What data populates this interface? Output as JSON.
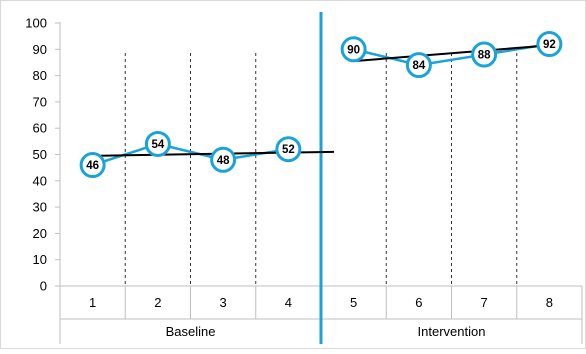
{
  "chart_data": {
    "type": "line",
    "title": "",
    "xlabel": "",
    "ylabel": "",
    "ylim": [
      0,
      100
    ],
    "y_ticks": [
      0,
      10,
      20,
      30,
      40,
      50,
      60,
      70,
      80,
      90,
      100
    ],
    "x_categories": [
      "1",
      "2",
      "3",
      "4",
      "5",
      "6",
      "7",
      "8"
    ],
    "phases": [
      {
        "name": "Baseline",
        "sessions": [
          1,
          2,
          3,
          4
        ]
      },
      {
        "name": "Intervention",
        "sessions": [
          5,
          6,
          7,
          8
        ]
      }
    ],
    "series": [
      {
        "phase": "Baseline",
        "x": [
          1,
          2,
          3,
          4
        ],
        "values": [
          46,
          54,
          48,
          52
        ],
        "labels": [
          "46",
          "54",
          "48",
          "52"
        ]
      },
      {
        "phase": "Intervention",
        "x": [
          5,
          6,
          7,
          8
        ],
        "values": [
          90,
          84,
          88,
          92
        ],
        "labels": [
          "90",
          "84",
          "88",
          "92"
        ]
      }
    ],
    "trend_lines": [
      {
        "phase": "Baseline",
        "from": [
          1,
          49.5
        ],
        "to": [
          4.7,
          51
        ]
      },
      {
        "phase": "Intervention",
        "from": [
          5,
          85.5
        ],
        "to": [
          8,
          91.5
        ]
      }
    ],
    "grid": "none",
    "phase_change_after": 4,
    "colors": {
      "series": "#1aa3d9",
      "phase_line": "#1aa3d9",
      "trend": "#000000",
      "axis": "#bfbfbf",
      "text": "#000000"
    }
  }
}
